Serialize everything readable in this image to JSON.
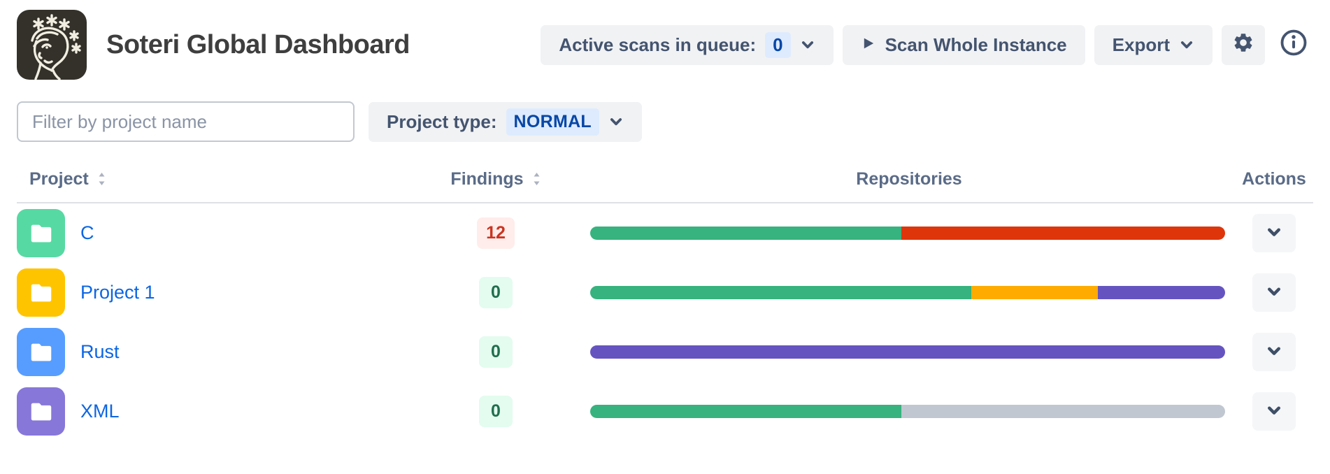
{
  "header": {
    "title": "Soteri Global Dashboard",
    "active_scans_label": "Active scans in queue:",
    "active_scans_count": "0",
    "scan_button_label": "Scan Whole Instance",
    "export_label": "Export"
  },
  "filters": {
    "search_placeholder": "Filter by project name",
    "project_type_label": "Project type:",
    "project_type_value": "NORMAL"
  },
  "table": {
    "columns": [
      "Project",
      "Findings",
      "Repositories",
      "Actions"
    ],
    "rows": [
      {
        "project": "C",
        "avatar_color": "#57D9A3",
        "findings": "12",
        "findings_status": "has_findings",
        "segments": [
          {
            "status": "clean",
            "color": "#36B37E",
            "pct": 49
          },
          {
            "status": "findings",
            "color": "#DE350B",
            "pct": 51
          }
        ]
      },
      {
        "project": "Project 1",
        "avatar_color": "#FFC400",
        "findings": "0",
        "findings_status": "clean",
        "segments": [
          {
            "status": "clean",
            "color": "#36B37E",
            "pct": 60
          },
          {
            "status": "warning",
            "color": "#FFAB00",
            "pct": 20
          },
          {
            "status": "other",
            "color": "#6554C0",
            "pct": 20
          }
        ]
      },
      {
        "project": "Rust",
        "avatar_color": "#579DFF",
        "findings": "0",
        "findings_status": "clean",
        "segments": [
          {
            "status": "other",
            "color": "#6554C0",
            "pct": 100
          }
        ]
      },
      {
        "project": "XML",
        "avatar_color": "#8777D9",
        "findings": "0",
        "findings_status": "clean",
        "segments": [
          {
            "status": "clean",
            "color": "#36B37E",
            "pct": 49
          },
          {
            "status": "not_scanned",
            "color": "#C1C7D0",
            "pct": 51
          }
        ]
      }
    ]
  },
  "status_colors": {
    "has_findings": {
      "bg": "#FFEDEB",
      "text": "#CA3521"
    },
    "clean": {
      "bg": "#E3FCEF",
      "text": "#216E4E"
    }
  },
  "colors": {
    "link_blue": "#0C66E4",
    "badge_blue_bg": "#DEEBFF",
    "badge_blue_text": "#0747A6",
    "button_bg": "#F1F2F4",
    "button_text": "#44546F",
    "bar_green": "#36B37E",
    "bar_red": "#DE350B",
    "bar_orange": "#FFAB00",
    "bar_purple": "#6554C0",
    "bar_gray": "#C1C7D0",
    "logo_bg": "#33312a"
  }
}
